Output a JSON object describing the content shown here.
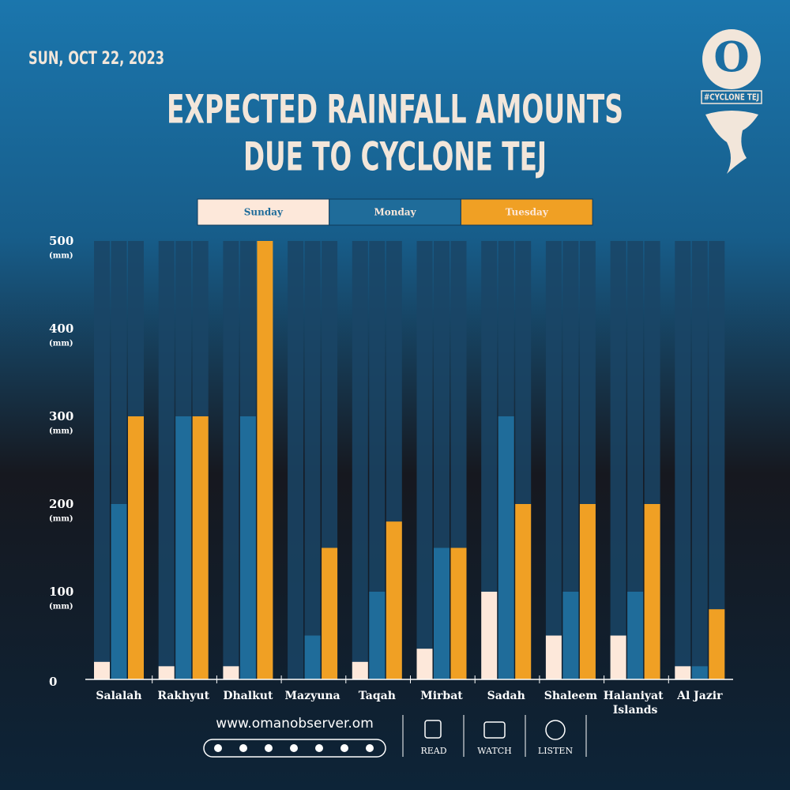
{
  "chart_data": {
    "type": "bar",
    "date": "SUN, OCT 22, 2023",
    "title_lines": [
      "EXPECTED RAINFALL AMOUNTS",
      "DUE TO CYCLONE TEJ"
    ],
    "brand": {
      "logo": "O",
      "hashtag": "#CYCLONE TEJ"
    },
    "y_unit": "(mm)",
    "categories": [
      "Salalah",
      "Rakhyut",
      "Dhalkut",
      "Mazyuna",
      "Taqah",
      "Mirbat",
      "Sadah",
      "Shaleem",
      "Halaniyat Islands",
      "Al Jazir"
    ],
    "series": [
      {
        "name": "Sunday",
        "color": "#fde8da",
        "values": [
          20,
          15,
          15,
          0,
          20,
          35,
          100,
          50,
          50,
          15
        ]
      },
      {
        "name": "Monday",
        "color": "#1f6c9a",
        "values": [
          200,
          300,
          300,
          50,
          100,
          150,
          300,
          100,
          100,
          15
        ]
      },
      {
        "name": "Tuesday",
        "color": "#f0a024",
        "values": [
          300,
          300,
          500,
          150,
          180,
          150,
          200,
          200,
          200,
          80
        ]
      }
    ],
    "ylim": [
      0,
      500
    ],
    "yticks": [
      0,
      100,
      200,
      300,
      400,
      500
    ],
    "footer": {
      "website": "www.omanobserver.om",
      "actions": [
        "READ",
        "WATCH",
        "LISTEN"
      ]
    }
  }
}
